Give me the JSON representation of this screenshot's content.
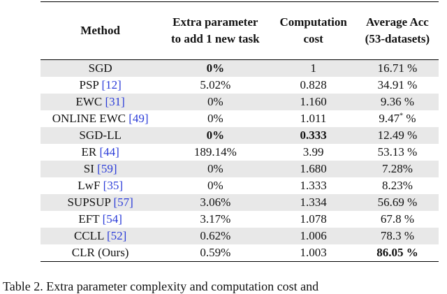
{
  "table": {
    "headers": [
      "Method",
      "Extra parameter\nto add 1 new task",
      "Computation\ncost",
      "Average Acc\n(53-datasets)"
    ],
    "rows": [
      {
        "method": "SGD",
        "cite": null,
        "param": "0%",
        "cost": "1",
        "acc": "16.71 %"
      },
      {
        "method": "PSP",
        "cite": "[12]",
        "param": "5.02%",
        "cost": "0.828",
        "acc": "34.91 %"
      },
      {
        "method": "EWC",
        "cite": "[31]",
        "param": "0%",
        "cost": "1.160",
        "acc": "9.36 %"
      },
      {
        "method": "ONLINE EWC",
        "cite": "[49]",
        "param": "0%",
        "cost": "1.011",
        "acc": "9.47",
        "acc_sup": "*",
        "acc_suffix": " %"
      },
      {
        "method": "SGD-LL",
        "cite": null,
        "param": "0%",
        "cost": "0.333",
        "acc": "12.49 %"
      },
      {
        "method": "ER",
        "cite": "[44]",
        "param": "189.14%",
        "cost": "3.99",
        "acc": "53.13 %"
      },
      {
        "method": "SI",
        "cite": "[59]",
        "param": "0%",
        "cost": "1.680",
        "acc": "7.28%"
      },
      {
        "method": "LwF",
        "cite": "[35]",
        "param": "0%",
        "cost": "1.333",
        "acc": "8.23%"
      },
      {
        "method": "SUPSUP",
        "cite": "[57]",
        "param": "3.06%",
        "cost": "1.334",
        "acc": "56.69 %"
      },
      {
        "method": "EFT",
        "cite": "[54]",
        "param": "3.17%",
        "cost": "1.078",
        "acc": "67.8 %"
      },
      {
        "method": "CCLL",
        "cite": "[52]",
        "param": "0.62%",
        "cost": "1.006",
        "acc": "78.3 %"
      },
      {
        "method": "CLR (Ours)",
        "cite": null,
        "param": "0.59%",
        "cost": "1.003",
        "acc": "86.05 %"
      }
    ],
    "bold": [
      [
        0,
        "param"
      ],
      [
        4,
        "param"
      ],
      [
        4,
        "cost"
      ],
      [
        11,
        "acc"
      ]
    ]
  },
  "caption": "Table 2. Extra parameter complexity and computation cost and"
}
